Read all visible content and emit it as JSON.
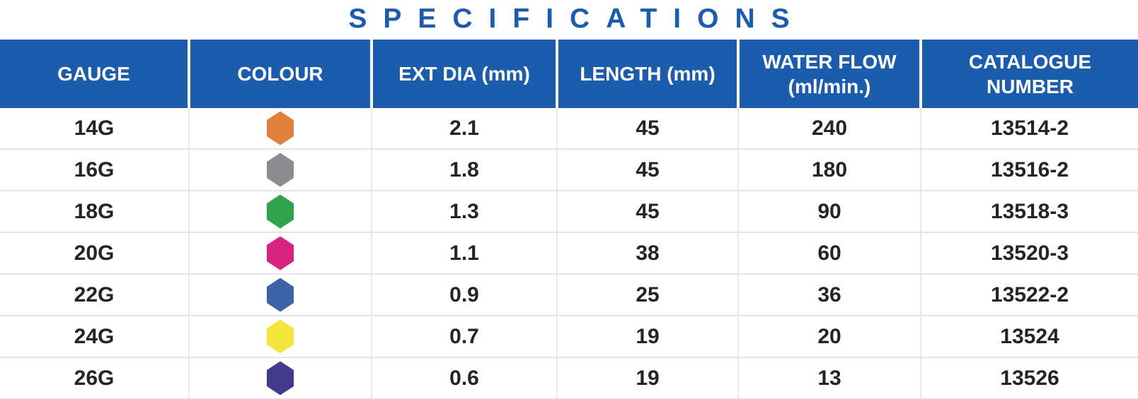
{
  "title": "SPECIFICATIONS",
  "colors": {
    "title_text": "#1B5CAC",
    "header_bg": "#1B5CAC",
    "header_text": "#FFFFFF",
    "body_text": "#242424",
    "divider": "#E4E4E4"
  },
  "table": {
    "columns": [
      {
        "key": "gauge",
        "label": "GAUGE"
      },
      {
        "key": "colour",
        "label": "COLOUR"
      },
      {
        "key": "ext_dia",
        "label": "EXT DIA (mm)"
      },
      {
        "key": "length",
        "label": "LENGTH (mm)"
      },
      {
        "key": "water_flow",
        "label": "WATER FLOW\n(ml/min.)"
      },
      {
        "key": "catalogue",
        "label": "CATALOGUE\nNUMBER"
      }
    ],
    "rows": [
      {
        "gauge": "14G",
        "colour_name": "orange",
        "colour_hex": "#E0803D",
        "ext_dia": "2.1",
        "length": "45",
        "water_flow": "240",
        "catalogue": "13514-2"
      },
      {
        "gauge": "16G",
        "colour_name": "grey",
        "colour_hex": "#8B8B90",
        "ext_dia": "1.8",
        "length": "45",
        "water_flow": "180",
        "catalogue": "13516-2"
      },
      {
        "gauge": "18G",
        "colour_name": "green",
        "colour_hex": "#2FA44D",
        "ext_dia": "1.3",
        "length": "45",
        "water_flow": "90",
        "catalogue": "13518-3"
      },
      {
        "gauge": "20G",
        "colour_name": "magenta",
        "colour_hex": "#D9217E",
        "ext_dia": "1.1",
        "length": "38",
        "water_flow": "60",
        "catalogue": "13520-3"
      },
      {
        "gauge": "22G",
        "colour_name": "blue",
        "colour_hex": "#3A63A8",
        "ext_dia": "0.9",
        "length": "25",
        "water_flow": "36",
        "catalogue": "13522-2"
      },
      {
        "gauge": "24G",
        "colour_name": "yellow",
        "colour_hex": "#F2E63C",
        "ext_dia": "0.7",
        "length": "19",
        "water_flow": "20",
        "catalogue": "13524"
      },
      {
        "gauge": "26G",
        "colour_name": "purple",
        "colour_hex": "#413A8D",
        "ext_dia": "0.6",
        "length": "19",
        "water_flow": "13",
        "catalogue": "13526"
      }
    ]
  },
  "chart_data": {
    "type": "table",
    "title": "SPECIFICATIONS",
    "columns": [
      "GAUGE",
      "COLOUR",
      "EXT DIA (mm)",
      "LENGTH (mm)",
      "WATER FLOW (ml/min.)",
      "CATALOGUE NUMBER"
    ],
    "rows": [
      [
        "14G",
        "orange",
        2.1,
        45,
        240,
        "13514-2"
      ],
      [
        "16G",
        "grey",
        1.8,
        45,
        180,
        "13516-2"
      ],
      [
        "18G",
        "green",
        1.3,
        45,
        90,
        "13518-3"
      ],
      [
        "20G",
        "magenta",
        1.1,
        38,
        60,
        "13520-3"
      ],
      [
        "22G",
        "blue",
        0.9,
        25,
        36,
        "13522-2"
      ],
      [
        "24G",
        "yellow",
        0.7,
        19,
        20,
        "13524"
      ],
      [
        "26G",
        "purple",
        0.6,
        19,
        13,
        "13526"
      ]
    ]
  }
}
